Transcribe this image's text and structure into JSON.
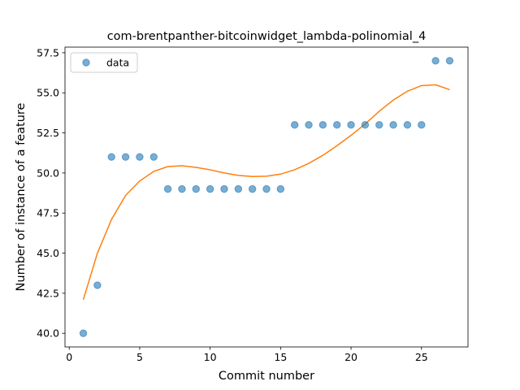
{
  "chart_data": {
    "type": "scatter",
    "title": "com-brentpanther-bitcoinwidget_lambda-polinomial_4",
    "xlabel": "Commit number",
    "ylabel": "Number of instance of a feature",
    "xlim": [
      -0.3,
      28.3
    ],
    "ylim": [
      39.15,
      57.85
    ],
    "x_ticks": [
      0,
      5,
      10,
      15,
      20,
      25
    ],
    "y_ticks": [
      40.0,
      42.5,
      45.0,
      47.5,
      50.0,
      52.5,
      55.0,
      57.5
    ],
    "x_tick_labels": [
      "0",
      "5",
      "10",
      "15",
      "20",
      "25"
    ],
    "y_tick_labels": [
      "40.0",
      "42.5",
      "45.0",
      "47.5",
      "50.0",
      "52.5",
      "55.0",
      "57.5"
    ],
    "grid": false,
    "legend_position": "upper-left",
    "series": [
      {
        "name": "data",
        "kind": "scatter",
        "color": "#1f77b4",
        "x": [
          1,
          2,
          3,
          4,
          5,
          6,
          7,
          8,
          9,
          10,
          11,
          12,
          13,
          14,
          15,
          16,
          17,
          18,
          19,
          20,
          21,
          22,
          23,
          24,
          25,
          26,
          27
        ],
        "y": [
          40,
          43,
          51,
          51,
          51,
          51,
          49,
          49,
          49,
          49,
          49,
          49,
          49,
          49,
          49,
          53,
          53,
          53,
          53,
          53,
          53,
          53,
          53,
          53,
          53,
          57,
          57
        ]
      },
      {
        "kind": "line",
        "color": "#ff7f0e",
        "x": [
          1,
          2,
          3,
          4,
          5,
          6,
          7,
          8,
          9,
          10,
          11,
          12,
          13,
          14,
          15,
          16,
          17,
          18,
          19,
          20,
          21,
          22,
          23,
          24,
          25,
          26,
          27
        ],
        "y": [
          42.1,
          45.0,
          47.1,
          48.6,
          49.5,
          50.1,
          50.4,
          50.45,
          50.35,
          50.2,
          50.0,
          49.85,
          49.78,
          49.8,
          49.93,
          50.2,
          50.6,
          51.1,
          51.7,
          52.35,
          53.05,
          53.85,
          54.55,
          55.1,
          55.45,
          55.5,
          55.2
        ]
      }
    ]
  }
}
